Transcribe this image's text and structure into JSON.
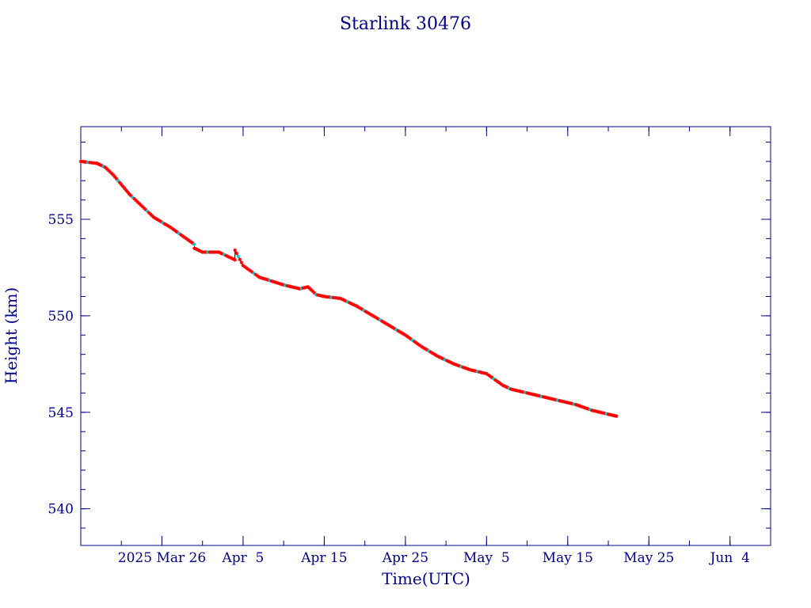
{
  "chart_data": {
    "type": "scatter",
    "title": "Starlink 30476",
    "xlabel": "Time(UTC)",
    "ylabel": "Height (km)",
    "x_tick_labels": [
      "2025 Mar 26",
      "Apr  5",
      "Apr 15",
      "Apr 25",
      "May  5",
      "May 15",
      "May 25",
      "Jun  4"
    ],
    "x_tick_dates": [
      "2025-03-26",
      "2025-04-05",
      "2025-04-15",
      "2025-04-25",
      "2025-05-05",
      "2025-05-15",
      "2025-05-25",
      "2025-06-04"
    ],
    "y_tick_labels": [
      "540",
      "545",
      "550",
      "555"
    ],
    "y_ticks": [
      540,
      545,
      550,
      555
    ],
    "xlim": [
      "2025-03-16",
      "2025-06-09"
    ],
    "ylim": [
      538.1,
      559.8
    ],
    "grid": false,
    "colors": {
      "axes": "#00008b",
      "line": "#000000",
      "marker_primary": "#ff0000",
      "marker_secondary": "#00ced1"
    },
    "series": [
      {
        "x": [
          "2025-03-16",
          "2025-03-18",
          "2025-03-19",
          "2025-03-20",
          "2025-03-21",
          "2025-03-22",
          "2025-03-23",
          "2025-03-24",
          "2025-03-25",
          "2025-03-27",
          "2025-03-29",
          "2025-03-30",
          "2025-03-30",
          "2025-03-31",
          "2025-04-02",
          "2025-04-04",
          "2025-04-04",
          "2025-04-05",
          "2025-04-07",
          "2025-04-10",
          "2025-04-12",
          "2025-04-13",
          "2025-04-14",
          "2025-04-15",
          "2025-04-17",
          "2025-04-19",
          "2025-04-21",
          "2025-04-23",
          "2025-04-25",
          "2025-04-27",
          "2025-04-29",
          "2025-05-01",
          "2025-05-03",
          "2025-05-05",
          "2025-05-07",
          "2025-05-08",
          "2025-05-10",
          "2025-05-12",
          "2025-05-14",
          "2025-05-16",
          "2025-05-18",
          "2025-05-20",
          "2025-05-21"
        ],
        "y": [
          558.0,
          557.9,
          557.7,
          557.3,
          556.8,
          556.3,
          555.9,
          555.5,
          555.1,
          554.6,
          554.0,
          553.7,
          553.5,
          553.3,
          553.3,
          552.9,
          553.4,
          552.6,
          552.0,
          551.6,
          551.4,
          551.5,
          551.1,
          551.0,
          550.9,
          550.5,
          550.0,
          549.5,
          549.0,
          548.4,
          547.9,
          547.5,
          547.2,
          547.0,
          546.4,
          546.2,
          546.0,
          545.8,
          545.6,
          545.4,
          545.1,
          544.9,
          544.8
        ]
      }
    ]
  }
}
